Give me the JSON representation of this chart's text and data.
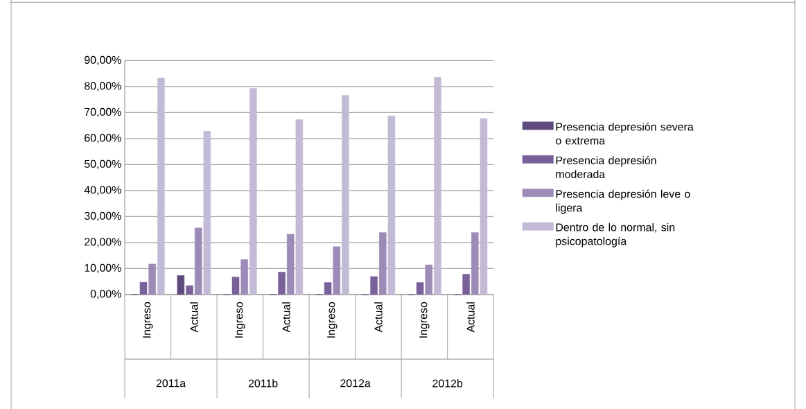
{
  "chart_data": {
    "type": "bar",
    "categories": [
      "Ingreso",
      "Actual",
      "Ingreso",
      "Actual",
      "Ingreso",
      "Actual",
      "Ingreso",
      "Actual"
    ],
    "annotations": [
      "2011a",
      "2011b",
      "2012a",
      "2012b"
    ],
    "series": [
      {
        "name": "Presencia depresión severa o extrema",
        "color": "#5f4a7d",
        "values": [
          0,
          7.3,
          0,
          0,
          0,
          0,
          0,
          0
        ]
      },
      {
        "name": "Presencia depresión moderada",
        "color": "#7b6199",
        "values": [
          4.7,
          3.4,
          6.7,
          8.6,
          4.6,
          6.9,
          4.6,
          7.8
        ]
      },
      {
        "name": "Presencia depresión leve o ligera",
        "color": "#9d8bb7",
        "values": [
          11.7,
          25.6,
          13.4,
          23.2,
          18.4,
          23.8,
          11.4,
          23.8
        ]
      },
      {
        "name": "Dentro de lo normal, sin psicopatología",
        "color": "#c3bbd5",
        "values": [
          83.3,
          62.8,
          79.3,
          67.3,
          76.6,
          68.7,
          83.6,
          67.7
        ]
      }
    ],
    "ylim": [
      0,
      90
    ],
    "yticks": [
      {
        "value": 0,
        "label": "0,00%"
      },
      {
        "value": 10,
        "label": "10,00%"
      },
      {
        "value": 20,
        "label": "20,00%"
      },
      {
        "value": 30,
        "label": "30,00%"
      },
      {
        "value": 40,
        "label": "40,00%"
      },
      {
        "value": 50,
        "label": "50,00%"
      },
      {
        "value": 60,
        "label": "60,00%"
      },
      {
        "value": 70,
        "label": "70,00%"
      },
      {
        "value": 80,
        "label": "80,00%"
      },
      {
        "value": 90,
        "label": "90,00%"
      }
    ],
    "grid": "y",
    "legend": "right"
  }
}
